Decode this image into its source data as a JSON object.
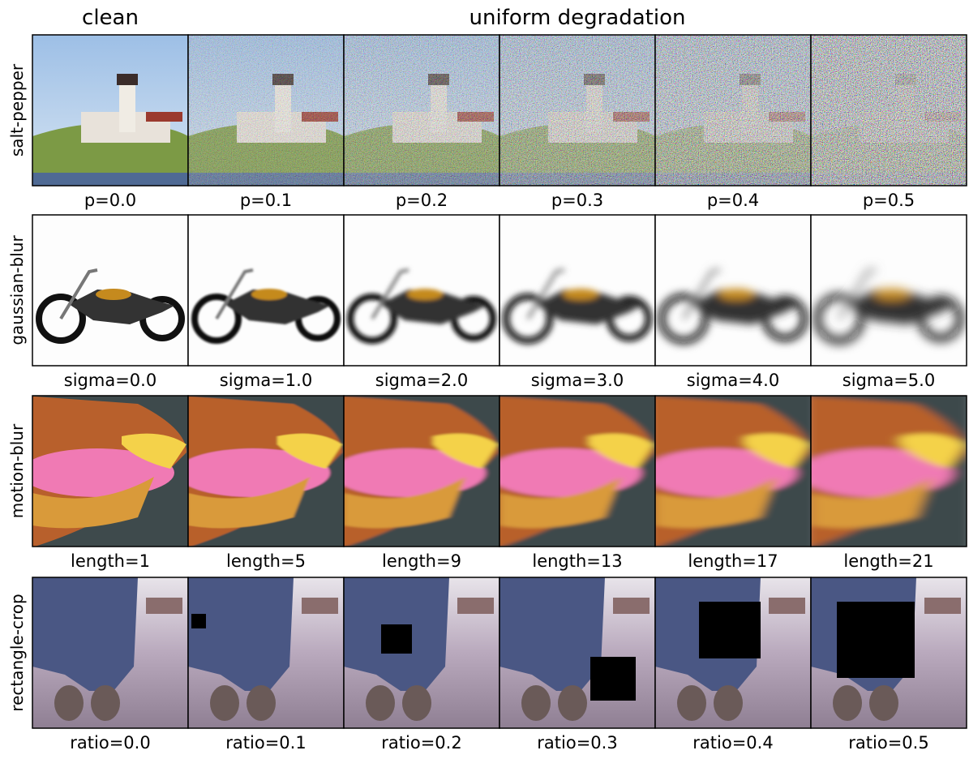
{
  "header": {
    "left": "clean",
    "right": "uniform degradation"
  },
  "rows": [
    {
      "label": "salt-pepper",
      "captions": [
        "p=0.0",
        "p=0.1",
        "p=0.2",
        "p=0.3",
        "p=0.4",
        "p=0.5"
      ]
    },
    {
      "label": "gaussian-blur",
      "captions": [
        "sigma=0.0",
        "sigma=1.0",
        "sigma=2.0",
        "sigma=3.0",
        "sigma=4.0",
        "sigma=5.0"
      ]
    },
    {
      "label": "motion-blur",
      "captions": [
        "length=1",
        "length=5",
        "length=9",
        "length=13",
        "length=17",
        "length=21"
      ]
    },
    {
      "label": "rectangle-crop",
      "captions": [
        "ratio=0.0",
        "ratio=0.1",
        "ratio=0.2",
        "ratio=0.3",
        "ratio=0.4",
        "ratio=0.5"
      ]
    }
  ]
}
